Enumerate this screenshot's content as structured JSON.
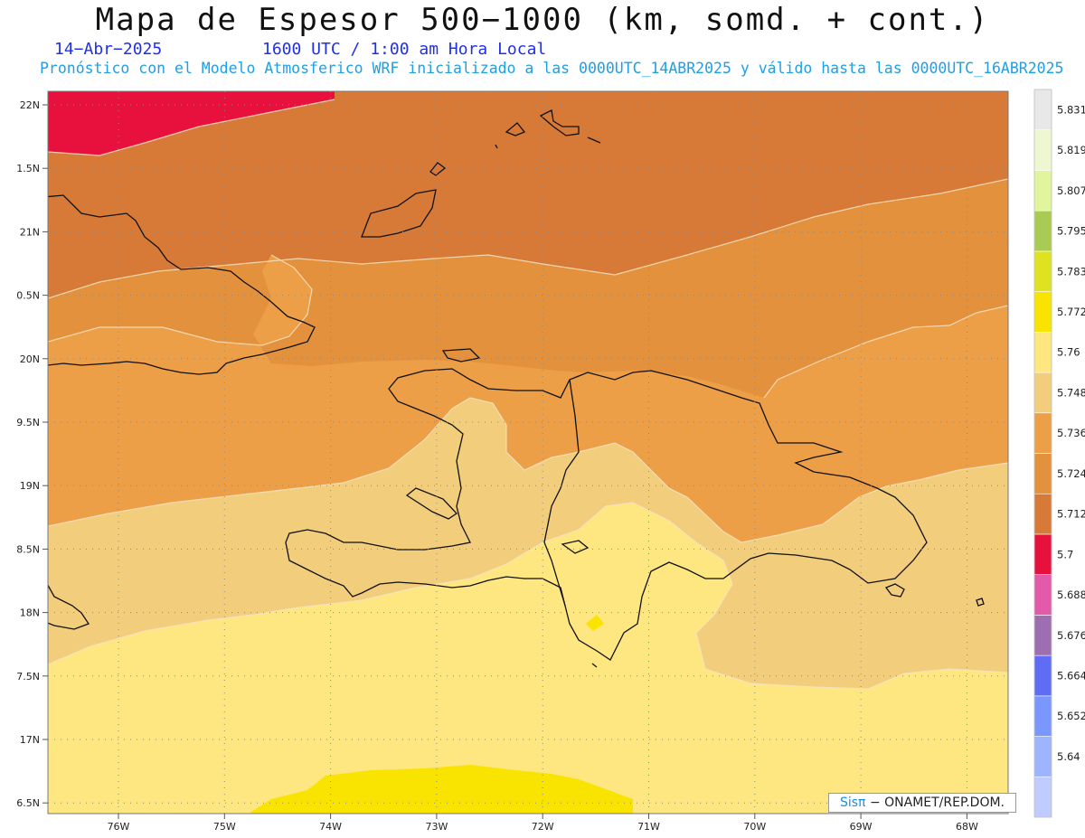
{
  "title": "Mapa de Espesor 500−1000 (km, somd. + cont.)",
  "date": "14−Abr−2025",
  "time": "1600 UTC / 1:00 am Hora Local",
  "forecast_text": "Pronóstico con el Modelo Atmosferico WRF inicializado a las 0000UTC_14ABR2025 y válido hasta las  0000UTC_16ABR2025",
  "lat_labels": [
    "22N",
    "1.5N",
    "21N",
    "0.5N",
    "20N",
    "9.5N",
    "19N",
    "8.5N",
    "18N",
    "7.5N",
    "17N",
    "6.5N"
  ],
  "lon_labels": [
    "76W",
    "75W",
    "74W",
    "73W",
    "72W",
    "71W",
    "70W",
    "69W",
    "68W"
  ],
  "legend_values": [
    "5.64",
    "5.652",
    "5.664",
    "5.676",
    "5.688",
    "5.7",
    "5.712",
    "5.724",
    "5.736",
    "5.748",
    "5.76",
    "5.772",
    "5.783",
    "5.795",
    "5.807",
    "5.819",
    "5.831"
  ],
  "legend_colors": [
    "#c0ccff",
    "#9fb4ff",
    "#7a96ff",
    "#5f6cf6",
    "#9e6fb0",
    "#e35aa8",
    "#e8103c",
    "#d87a37",
    "#e3913c",
    "#ec9f47",
    "#f1cd7c",
    "#fee780",
    "#f9e300",
    "#dfe221",
    "#a9cb53",
    "#e0f59c",
    "#eef7cf",
    "#e8e8e8"
  ],
  "credit": {
    "brand": "Sisπ",
    "text": "− ONAMET/REP.DOM."
  }
}
